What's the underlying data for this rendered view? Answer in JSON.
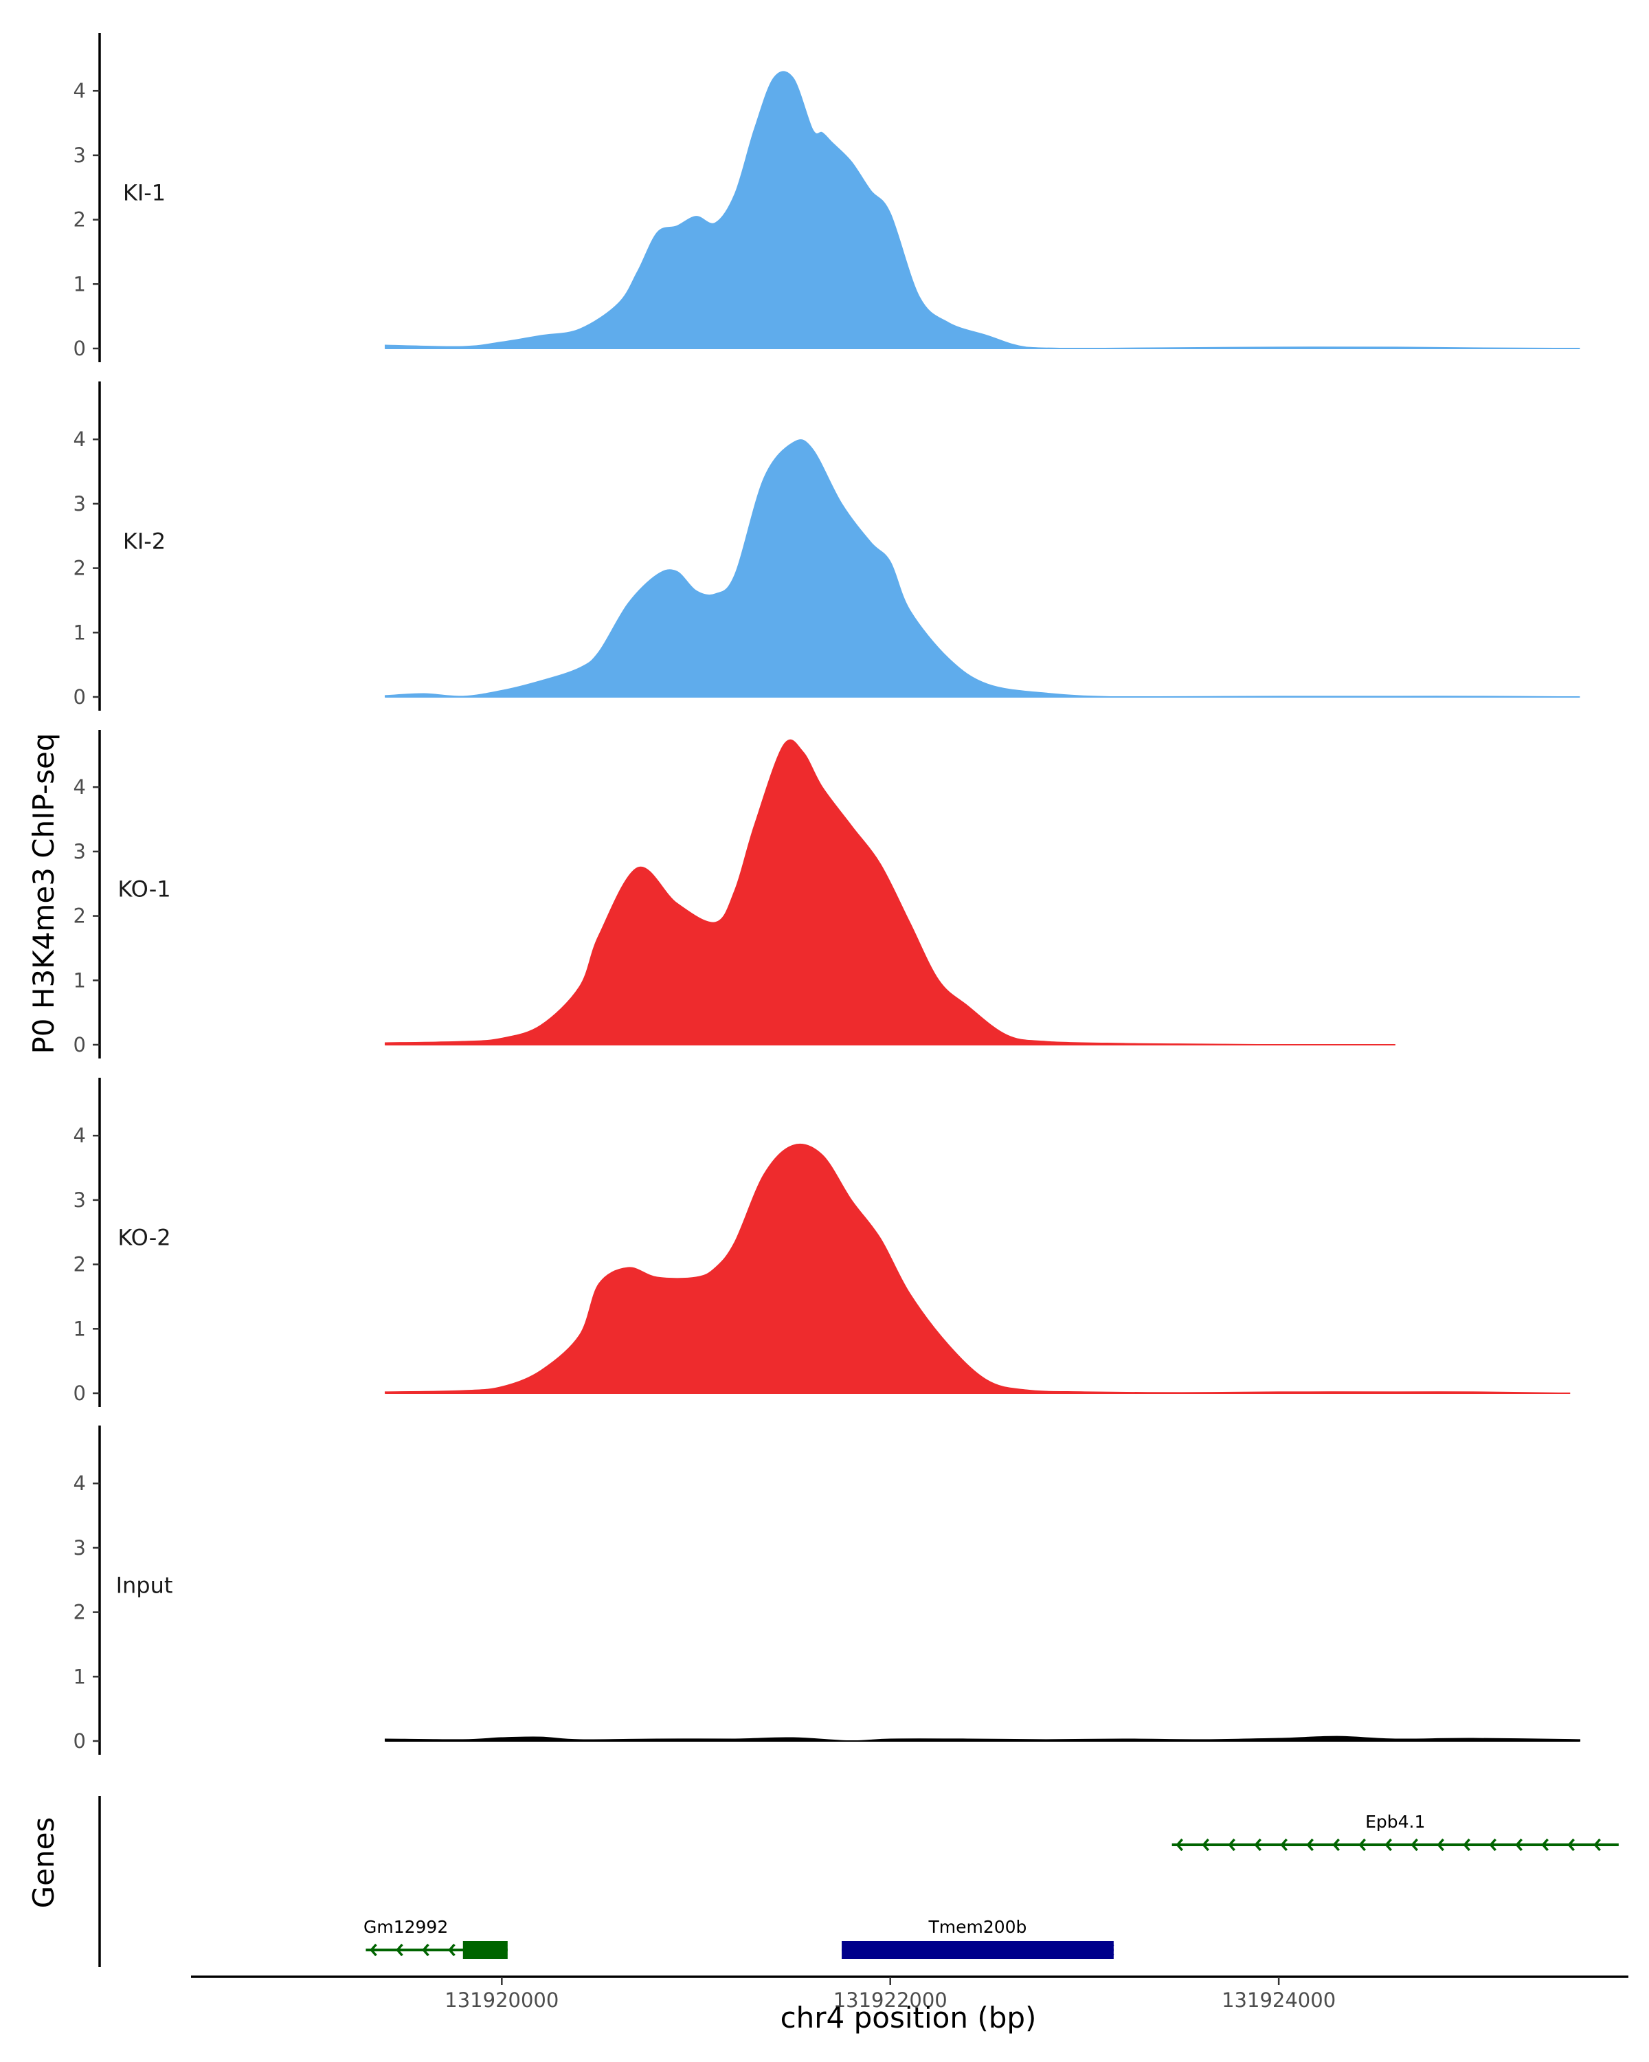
{
  "chart_data": {
    "type": "area",
    "title": "",
    "ylabel": "P0 H3K4me3 ChIP-seq",
    "xlabel": "chr4 position (bp)",
    "genes_label": "Genes",
    "xlim": [
      131918400,
      131925800
    ],
    "ylim": [
      0,
      4.9
    ],
    "y_ticks": [
      0,
      1,
      2,
      3,
      4
    ],
    "x_ticks": [
      131920000,
      131922000,
      131924000
    ],
    "x_tick_labels": [
      "131920000",
      "131922000",
      "131924000"
    ],
    "tracks": [
      {
        "name": "KI-1",
        "color": "#5FACEC",
        "x": [
          131919400,
          131919800,
          131920000,
          131920200,
          131920400,
          131920600,
          131920700,
          131920800,
          131920900,
          131921000,
          131921100,
          131921200,
          131921300,
          131921400,
          131921500,
          131921600,
          131921650,
          131921700,
          131921800,
          131921900,
          131922000,
          131922150,
          131922300,
          131922500,
          131922700,
          131923000,
          131923400,
          131924000,
          131924600,
          131925000,
          131925550
        ],
        "y": [
          0.05,
          0.03,
          0.1,
          0.2,
          0.3,
          0.7,
          1.2,
          1.8,
          1.9,
          2.05,
          1.95,
          2.4,
          3.4,
          4.2,
          4.2,
          3.4,
          3.35,
          3.2,
          2.9,
          2.45,
          2.1,
          0.8,
          0.4,
          0.2,
          0.02,
          0,
          0.01,
          0.02,
          0.02,
          0.01,
          0
        ]
      },
      {
        "name": "KI-2",
        "color": "#5FACEC",
        "x": [
          131919400,
          131919600,
          131919800,
          131920000,
          131920200,
          131920400,
          131920500,
          131920650,
          131920800,
          131920900,
          131921000,
          131921100,
          131921200,
          131921350,
          131921500,
          131921600,
          131921750,
          131921900,
          131922000,
          131922100,
          131922300,
          131922500,
          131922800,
          131923200,
          131924000,
          131924600,
          131925000,
          131925550
        ],
        "y": [
          0.02,
          0.05,
          0.01,
          0.1,
          0.25,
          0.45,
          0.7,
          1.45,
          1.9,
          1.95,
          1.65,
          1.6,
          1.9,
          3.4,
          3.95,
          3.85,
          3.0,
          2.4,
          2.1,
          1.35,
          0.6,
          0.2,
          0.06,
          0,
          0.01,
          0.01,
          0.01,
          0
        ],
        "__fill_note": "same palette"
      },
      {
        "name": "KO-1",
        "color": "#EE2B2D",
        "x": [
          131919400,
          131919800,
          131920000,
          131920200,
          131920400,
          131920500,
          131920700,
          131920900,
          131921100,
          131921200,
          131921300,
          131921450,
          131921550,
          131921650,
          131921800,
          131921950,
          131922100,
          131922250,
          131922400,
          131922600,
          131922800,
          131923200,
          131923600,
          131924000,
          131924600
        ],
        "y": [
          0.03,
          0.05,
          0.1,
          0.3,
          0.9,
          1.7,
          2.75,
          2.2,
          1.9,
          2.4,
          3.4,
          4.65,
          4.55,
          4.0,
          3.4,
          2.8,
          1.9,
          1.0,
          0.6,
          0.15,
          0.05,
          0.02,
          0.01,
          0,
          0
        ]
      },
      {
        "name": "KO-2",
        "color": "#EE2B2D",
        "x": [
          131919400,
          131919800,
          131920000,
          131920200,
          131920400,
          131920500,
          131920650,
          131920800,
          131921000,
          131921100,
          131921200,
          131921350,
          131921500,
          131921650,
          131921800,
          131921950,
          131922100,
          131922300,
          131922500,
          131922700,
          131923000,
          131923500,
          131924000,
          131924600,
          131925000,
          131925500
        ],
        "y": [
          0.02,
          0.04,
          0.1,
          0.35,
          0.9,
          1.7,
          1.95,
          1.8,
          1.8,
          1.95,
          2.35,
          3.4,
          3.85,
          3.7,
          3.0,
          2.4,
          1.55,
          0.75,
          0.2,
          0.05,
          0.02,
          0.01,
          0.02,
          0.02,
          0.02,
          0
        ]
      },
      {
        "name": "Input",
        "color": "#000000",
        "x": [
          131919400,
          131919800,
          131920000,
          131920200,
          131920400,
          131920800,
          131921200,
          131921500,
          131921800,
          131922000,
          131922400,
          131922800,
          131923200,
          131923600,
          131924000,
          131924300,
          131924600,
          131925000,
          131925550
        ],
        "y": [
          0.03,
          0.02,
          0.05,
          0.06,
          0.02,
          0.03,
          0.03,
          0.05,
          0,
          0.03,
          0.03,
          0.02,
          0.03,
          0.02,
          0.04,
          0.07,
          0.03,
          0.04,
          0.02
        ]
      }
    ],
    "genes": [
      {
        "name": "Gm12992",
        "start": 131919300,
        "end": 131920030,
        "thick_start": 131919800,
        "thick_end": 131920030,
        "strand": "-",
        "color": "#006400",
        "row": 2
      },
      {
        "name": "Tmem200b",
        "start": 131921750,
        "end": 131923150,
        "thick_start": 131921750,
        "thick_end": 131923150,
        "strand": "-",
        "color": "#00008B",
        "row": 2
      },
      {
        "name": "Epb4.1",
        "start": 131923450,
        "end": 131925750,
        "thick_start": 131925750,
        "thick_end": 131925750,
        "strand": "-",
        "color": "#006400",
        "row": 1
      }
    ]
  }
}
